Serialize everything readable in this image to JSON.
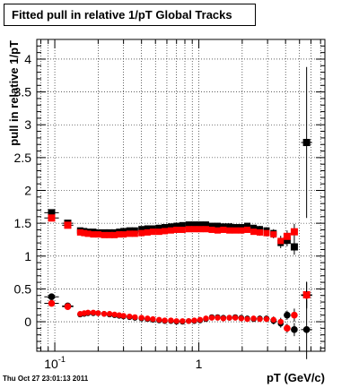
{
  "chart_data": {
    "type": "scatter",
    "title": "Fitted pull in relative 1/pT  Global Tracks",
    "xlabel": "pT (GeV/c)",
    "ylabel": "pull in relative 1/pT",
    "x_scale": "log",
    "xlim": [
      0.075,
      7.5
    ],
    "ylim": [
      -0.45,
      4.3
    ],
    "grid": true,
    "xtick_labels": [
      {
        "value": 0.1,
        "base": "10",
        "exp": "-1"
      },
      {
        "value": 1,
        "base": "1",
        "exp": ""
      }
    ],
    "yticks": [
      {
        "value": 0,
        "label": "0"
      },
      {
        "value": 0.5,
        "label": "0.5"
      },
      {
        "value": 1,
        "label": "1"
      },
      {
        "value": 1.5,
        "label": "1.5"
      },
      {
        "value": 2,
        "label": "2"
      },
      {
        "value": 2.5,
        "label": "2.5"
      },
      {
        "value": 3,
        "label": "3"
      },
      {
        "value": 3.5,
        "label": "3.5"
      },
      {
        "value": 4,
        "label": "4"
      }
    ],
    "series": [
      {
        "color": "#000000",
        "points": [
          [
            0.095,
            1.66
          ],
          [
            0.123,
            1.5
          ],
          [
            0.15,
            1.39
          ],
          [
            0.16,
            1.38
          ],
          [
            0.17,
            1.37
          ],
          [
            0.185,
            1.37
          ],
          [
            0.2,
            1.36
          ],
          [
            0.22,
            1.36
          ],
          [
            0.24,
            1.36
          ],
          [
            0.26,
            1.36
          ],
          [
            0.28,
            1.37
          ],
          [
            0.3,
            1.38
          ],
          [
            0.33,
            1.39
          ],
          [
            0.36,
            1.39
          ],
          [
            0.4,
            1.41
          ],
          [
            0.44,
            1.42
          ],
          [
            0.48,
            1.42
          ],
          [
            0.53,
            1.43
          ],
          [
            0.58,
            1.44
          ],
          [
            0.64,
            1.45
          ],
          [
            0.7,
            1.46
          ],
          [
            0.77,
            1.47
          ],
          [
            0.85,
            1.48
          ],
          [
            0.93,
            1.48
          ],
          [
            1.02,
            1.48
          ],
          [
            1.12,
            1.48
          ],
          [
            1.23,
            1.46
          ],
          [
            1.35,
            1.46
          ],
          [
            1.48,
            1.45
          ],
          [
            1.63,
            1.45
          ],
          [
            1.79,
            1.44
          ],
          [
            1.97,
            1.44
          ],
          [
            2.17,
            1.46
          ],
          [
            2.4,
            1.43
          ],
          [
            2.65,
            1.41
          ],
          [
            2.95,
            1.39
          ],
          [
            3.3,
            1.35
          ],
          [
            3.7,
            1.2
          ],
          [
            4.1,
            1.24
          ],
          [
            4.6,
            1.14
          ],
          [
            5.6,
            2.73
          ]
        ],
        "yerr": [
          0.05,
          0.04,
          0.03,
          0.03,
          0.03,
          0.02,
          0.02,
          0.02,
          0.02,
          0.02,
          0.02,
          0.02,
          0.02,
          0.02,
          0.02,
          0.02,
          0.02,
          0.02,
          0.02,
          0.02,
          0.02,
          0.02,
          0.02,
          0.02,
          0.02,
          0.02,
          0.02,
          0.02,
          0.02,
          0.03,
          0.03,
          0.03,
          0.04,
          0.04,
          0.05,
          0.05,
          0.06,
          0.08,
          0.09,
          0.12,
          1.15
        ]
      },
      {
        "color": "#ff0000",
        "points": [
          [
            0.095,
            1.58
          ],
          [
            0.123,
            1.47
          ],
          [
            0.15,
            1.36
          ],
          [
            0.16,
            1.35
          ],
          [
            0.17,
            1.34
          ],
          [
            0.185,
            1.33
          ],
          [
            0.2,
            1.33
          ],
          [
            0.22,
            1.32
          ],
          [
            0.24,
            1.32
          ],
          [
            0.26,
            1.32
          ],
          [
            0.28,
            1.33
          ],
          [
            0.3,
            1.33
          ],
          [
            0.33,
            1.34
          ],
          [
            0.36,
            1.34
          ],
          [
            0.4,
            1.35
          ],
          [
            0.44,
            1.36
          ],
          [
            0.48,
            1.37
          ],
          [
            0.53,
            1.37
          ],
          [
            0.58,
            1.38
          ],
          [
            0.64,
            1.39
          ],
          [
            0.7,
            1.4
          ],
          [
            0.77,
            1.4
          ],
          [
            0.85,
            1.41
          ],
          [
            0.93,
            1.41
          ],
          [
            1.02,
            1.41
          ],
          [
            1.12,
            1.41
          ],
          [
            1.23,
            1.4
          ],
          [
            1.35,
            1.39
          ],
          [
            1.48,
            1.4
          ],
          [
            1.63,
            1.39
          ],
          [
            1.79,
            1.39
          ],
          [
            1.97,
            1.39
          ],
          [
            2.17,
            1.4
          ],
          [
            2.4,
            1.37
          ],
          [
            2.65,
            1.36
          ],
          [
            2.95,
            1.35
          ],
          [
            3.3,
            1.33
          ],
          [
            3.7,
            1.23
          ],
          [
            4.1,
            1.3
          ],
          [
            4.6,
            1.37
          ],
          [
            5.6,
            0.41
          ]
        ],
        "yerr": [
          0.05,
          0.04,
          0.03,
          0.03,
          0.03,
          0.02,
          0.02,
          0.02,
          0.02,
          0.02,
          0.02,
          0.02,
          0.02,
          0.02,
          0.02,
          0.02,
          0.02,
          0.02,
          0.02,
          0.02,
          0.02,
          0.02,
          0.02,
          0.02,
          0.02,
          0.02,
          0.02,
          0.02,
          0.02,
          0.03,
          0.03,
          0.03,
          0.04,
          0.04,
          0.05,
          0.05,
          0.06,
          0.08,
          0.09,
          0.12,
          0.2
        ]
      },
      {
        "color": "#000000",
        "points": [
          [
            0.095,
            0.38
          ],
          [
            0.123,
            0.24
          ],
          [
            0.15,
            0.11
          ],
          [
            0.16,
            0.12
          ],
          [
            0.17,
            0.13
          ],
          [
            0.185,
            0.13
          ],
          [
            0.2,
            0.13
          ],
          [
            0.22,
            0.12
          ],
          [
            0.24,
            0.11
          ],
          [
            0.26,
            0.1
          ],
          [
            0.28,
            0.09
          ],
          [
            0.3,
            0.08
          ],
          [
            0.33,
            0.07
          ],
          [
            0.36,
            0.06
          ],
          [
            0.4,
            0.05
          ],
          [
            0.44,
            0.04
          ],
          [
            0.48,
            0.03
          ],
          [
            0.53,
            0.02
          ],
          [
            0.58,
            0.01
          ],
          [
            0.64,
            0.01
          ],
          [
            0.7,
            0.0
          ],
          [
            0.77,
            0.0
          ],
          [
            0.85,
            0.01
          ],
          [
            0.93,
            0.01
          ],
          [
            1.02,
            0.02
          ],
          [
            1.12,
            0.04
          ],
          [
            1.23,
            0.07
          ],
          [
            1.35,
            0.07
          ],
          [
            1.48,
            0.06
          ],
          [
            1.63,
            0.06
          ],
          [
            1.79,
            0.07
          ],
          [
            1.97,
            0.06
          ],
          [
            2.17,
            0.05
          ],
          [
            2.4,
            0.04
          ],
          [
            2.65,
            0.05
          ],
          [
            2.95,
            0.05
          ],
          [
            3.3,
            0.01
          ],
          [
            3.7,
            -0.03
          ],
          [
            4.1,
            0.1
          ],
          [
            4.6,
            -0.12
          ],
          [
            5.6,
            -0.12
          ]
        ],
        "yerr": [
          0.04,
          0.03,
          0.02,
          0.02,
          0.02,
          0.02,
          0.02,
          0.02,
          0.02,
          0.02,
          0.02,
          0.02,
          0.02,
          0.02,
          0.02,
          0.02,
          0.02,
          0.02,
          0.02,
          0.02,
          0.02,
          0.02,
          0.02,
          0.02,
          0.02,
          0.02,
          0.02,
          0.02,
          0.02,
          0.02,
          0.02,
          0.03,
          0.03,
          0.03,
          0.04,
          0.04,
          0.05,
          0.06,
          0.07,
          0.1,
          0.45
        ]
      },
      {
        "color": "#ff0000",
        "points": [
          [
            0.095,
            0.28
          ],
          [
            0.123,
            0.23
          ],
          [
            0.15,
            0.12
          ],
          [
            0.16,
            0.13
          ],
          [
            0.17,
            0.14
          ],
          [
            0.185,
            0.14
          ],
          [
            0.2,
            0.13
          ],
          [
            0.22,
            0.12
          ],
          [
            0.24,
            0.12
          ],
          [
            0.26,
            0.11
          ],
          [
            0.28,
            0.1
          ],
          [
            0.3,
            0.09
          ],
          [
            0.33,
            0.08
          ],
          [
            0.36,
            0.07
          ],
          [
            0.4,
            0.06
          ],
          [
            0.44,
            0.05
          ],
          [
            0.48,
            0.04
          ],
          [
            0.53,
            0.03
          ],
          [
            0.58,
            0.02
          ],
          [
            0.64,
            0.02
          ],
          [
            0.7,
            0.01
          ],
          [
            0.77,
            0.01
          ],
          [
            0.85,
            0.01
          ],
          [
            0.93,
            0.02
          ],
          [
            1.02,
            0.03
          ],
          [
            1.12,
            0.05
          ],
          [
            1.23,
            0.06
          ],
          [
            1.35,
            0.06
          ],
          [
            1.48,
            0.05
          ],
          [
            1.63,
            0.06
          ],
          [
            1.79,
            0.06
          ],
          [
            1.97,
            0.05
          ],
          [
            2.17,
            0.04
          ],
          [
            2.4,
            0.05
          ],
          [
            2.65,
            0.04
          ],
          [
            2.95,
            0.04
          ],
          [
            3.3,
            0.03
          ],
          [
            3.7,
            0.0
          ],
          [
            4.1,
            -0.1
          ],
          [
            4.6,
            0.1
          ],
          [
            5.6,
            0.4
          ]
        ],
        "yerr": [
          0.04,
          0.03,
          0.02,
          0.02,
          0.02,
          0.02,
          0.02,
          0.02,
          0.02,
          0.02,
          0.02,
          0.02,
          0.02,
          0.02,
          0.02,
          0.02,
          0.02,
          0.02,
          0.02,
          0.02,
          0.02,
          0.02,
          0.02,
          0.02,
          0.02,
          0.02,
          0.02,
          0.02,
          0.02,
          0.02,
          0.02,
          0.03,
          0.03,
          0.03,
          0.04,
          0.04,
          0.05,
          0.06,
          0.07,
          0.1,
          0.2
        ]
      }
    ]
  },
  "timestamp": "Thu Oct 27 23:01:13 2011"
}
